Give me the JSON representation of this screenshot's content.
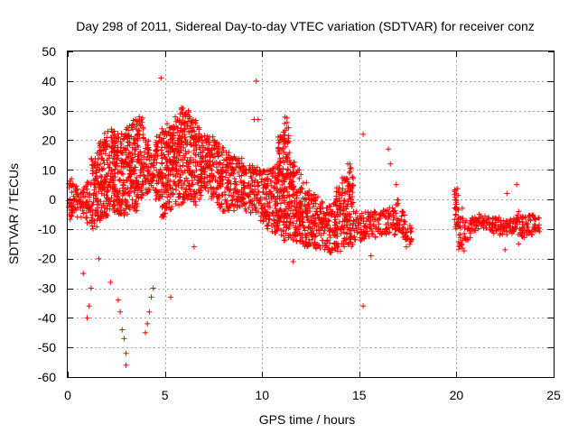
{
  "chart_data": {
    "type": "scatter",
    "title": "Day 298 of 2011, Sidereal Day-to-day VTEC variation (SDTVAR) for receiver conz",
    "xlabel": "GPS time / hours",
    "ylabel": "SDTVAR / TECUs",
    "xlim": [
      0,
      25
    ],
    "ylim": [
      -60,
      50
    ],
    "xticks": [
      0,
      5,
      10,
      15,
      20,
      25
    ],
    "yticks": [
      -60,
      -50,
      -40,
      -30,
      -20,
      -10,
      0,
      10,
      20,
      30,
      40,
      50
    ],
    "grid": true,
    "marker": "+",
    "color": "#ff0000",
    "series": [
      {
        "name": "SDTVAR",
        "envelope_note": "dense point cloud approximated by [x_hours, y_min, y_max] bands",
        "bands": [
          [
            0.0,
            -7,
            7
          ],
          [
            0.3,
            -6,
            5
          ],
          [
            0.6,
            -6,
            4
          ],
          [
            0.9,
            -8,
            6
          ],
          [
            1.2,
            -10,
            14
          ],
          [
            1.5,
            -8,
            20
          ],
          [
            1.8,
            -6,
            23
          ],
          [
            2.1,
            -4,
            24
          ],
          [
            2.4,
            -5,
            24
          ],
          [
            2.7,
            -6,
            23
          ],
          [
            3.0,
            -5,
            26
          ],
          [
            3.3,
            -4,
            28
          ],
          [
            3.6,
            0,
            28
          ],
          [
            3.9,
            2,
            22
          ],
          [
            4.2,
            3,
            16
          ],
          [
            4.5,
            0,
            22
          ],
          [
            4.8,
            -6,
            24
          ],
          [
            5.1,
            -4,
            26
          ],
          [
            5.4,
            -2,
            28
          ],
          [
            5.7,
            -2,
            31
          ],
          [
            6.0,
            0,
            30
          ],
          [
            6.3,
            -2,
            27
          ],
          [
            6.6,
            0,
            25
          ],
          [
            6.9,
            2,
            22
          ],
          [
            7.2,
            0,
            22
          ],
          [
            7.5,
            -2,
            20
          ],
          [
            7.8,
            -4,
            18
          ],
          [
            8.1,
            -4,
            16
          ],
          [
            8.4,
            -4,
            15
          ],
          [
            8.7,
            -3,
            14
          ],
          [
            9.0,
            -4,
            12
          ],
          [
            9.3,
            -5,
            12
          ],
          [
            9.6,
            -5,
            11
          ],
          [
            9.9,
            -8,
            10
          ],
          [
            10.2,
            -10,
            10
          ],
          [
            10.5,
            -12,
            12
          ],
          [
            10.8,
            -12,
            22
          ],
          [
            11.1,
            -14,
            28
          ],
          [
            11.4,
            -14,
            14
          ],
          [
            11.7,
            -15,
            10
          ],
          [
            12.0,
            -16,
            6
          ],
          [
            12.3,
            -16,
            4
          ],
          [
            12.6,
            -17,
            2
          ],
          [
            12.9,
            -17,
            0
          ],
          [
            13.2,
            -18,
            -2
          ],
          [
            13.5,
            -18,
            0
          ],
          [
            13.8,
            -18,
            4
          ],
          [
            14.1,
            -16,
            8
          ],
          [
            14.4,
            -16,
            12
          ],
          [
            14.7,
            -14,
            -4
          ],
          [
            15.0,
            -14,
            -4
          ],
          [
            15.3,
            -14,
            -4
          ],
          [
            15.6,
            -13,
            -4
          ],
          [
            15.9,
            -12,
            -4
          ],
          [
            16.2,
            -12,
            -3
          ],
          [
            16.5,
            -12,
            -2
          ],
          [
            16.8,
            -12,
            0
          ],
          [
            17.1,
            -14,
            -4
          ],
          [
            17.4,
            -16,
            -8
          ],
          [
            19.9,
            -10,
            4
          ],
          [
            20.1,
            -18,
            -6
          ],
          [
            20.4,
            -14,
            -6
          ],
          [
            20.7,
            -12,
            -6
          ],
          [
            21.0,
            -10,
            -5
          ],
          [
            21.3,
            -10,
            -5
          ],
          [
            21.6,
            -11,
            -6
          ],
          [
            21.9,
            -12,
            -6
          ],
          [
            22.2,
            -12,
            -7
          ],
          [
            22.5,
            -12,
            -6
          ],
          [
            22.8,
            -12,
            -6
          ],
          [
            23.1,
            -13,
            -4
          ],
          [
            23.4,
            -13,
            -5
          ],
          [
            23.7,
            -12,
            -5
          ],
          [
            24.0,
            -11,
            -6
          ]
        ],
        "outliers": [
          [
            4.8,
            41
          ],
          [
            9.7,
            40
          ],
          [
            15.2,
            22
          ],
          [
            15.2,
            -36
          ],
          [
            16.5,
            17
          ],
          [
            16.2,
            -5
          ],
          [
            3.0,
            -56
          ],
          [
            3.0,
            -52
          ],
          [
            2.9,
            -47
          ],
          [
            2.8,
            -44
          ],
          [
            2.7,
            -38
          ],
          [
            2.6,
            -34
          ],
          [
            4.0,
            -45
          ],
          [
            4.1,
            -42
          ],
          [
            4.2,
            -38
          ],
          [
            4.3,
            -33
          ],
          [
            4.4,
            -30
          ],
          [
            5.3,
            -33
          ],
          [
            1.0,
            -40
          ],
          [
            1.1,
            -36
          ],
          [
            1.2,
            -30
          ],
          [
            0.8,
            -25
          ],
          [
            1.6,
            -20
          ],
          [
            2.2,
            -28
          ],
          [
            6.5,
            -16
          ],
          [
            9.6,
            27
          ],
          [
            9.8,
            27
          ],
          [
            16.6,
            12
          ],
          [
            16.9,
            5
          ],
          [
            20.3,
            -3
          ],
          [
            22.5,
            -17
          ],
          [
            22.6,
            2
          ],
          [
            23.1,
            5
          ],
          [
            23.2,
            -15
          ],
          [
            11.6,
            -21
          ],
          [
            15.6,
            -19
          ]
        ]
      }
    ]
  }
}
